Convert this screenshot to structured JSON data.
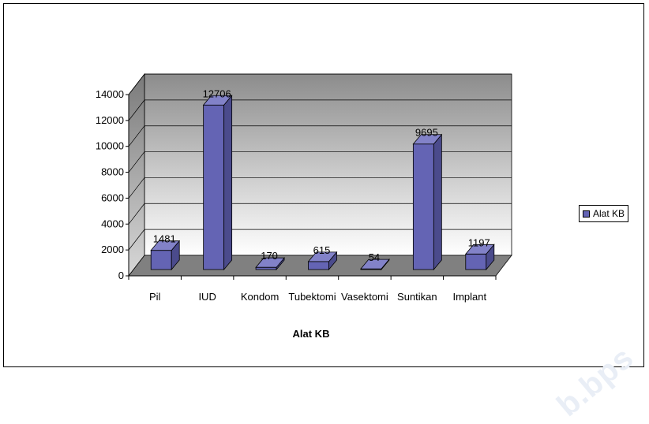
{
  "chart_data": {
    "type": "bar",
    "title": "",
    "xlabel": "Alat KB",
    "ylabel": "",
    "categories": [
      "Pil",
      "IUD",
      "Kondom",
      "Tubektomi",
      "Vasektomi",
      "Suntikan",
      "Implant"
    ],
    "series": [
      {
        "name": "Alat KB",
        "values": [
          1481,
          12706,
          170,
          615,
          54,
          9695,
          1197
        ]
      }
    ],
    "data_labels": [
      "1481",
      "12706",
      "170",
      "615",
      "54",
      "9695",
      "1197"
    ],
    "ylim": [
      0,
      14000
    ],
    "yticks": [
      "0",
      "2000",
      "4000",
      "6000",
      "8000",
      "10000",
      "12000",
      "14000"
    ],
    "grid": true,
    "legend_position": "right",
    "bar_color": "#6464b4",
    "style": "3d-column"
  },
  "watermark": "b.bps"
}
